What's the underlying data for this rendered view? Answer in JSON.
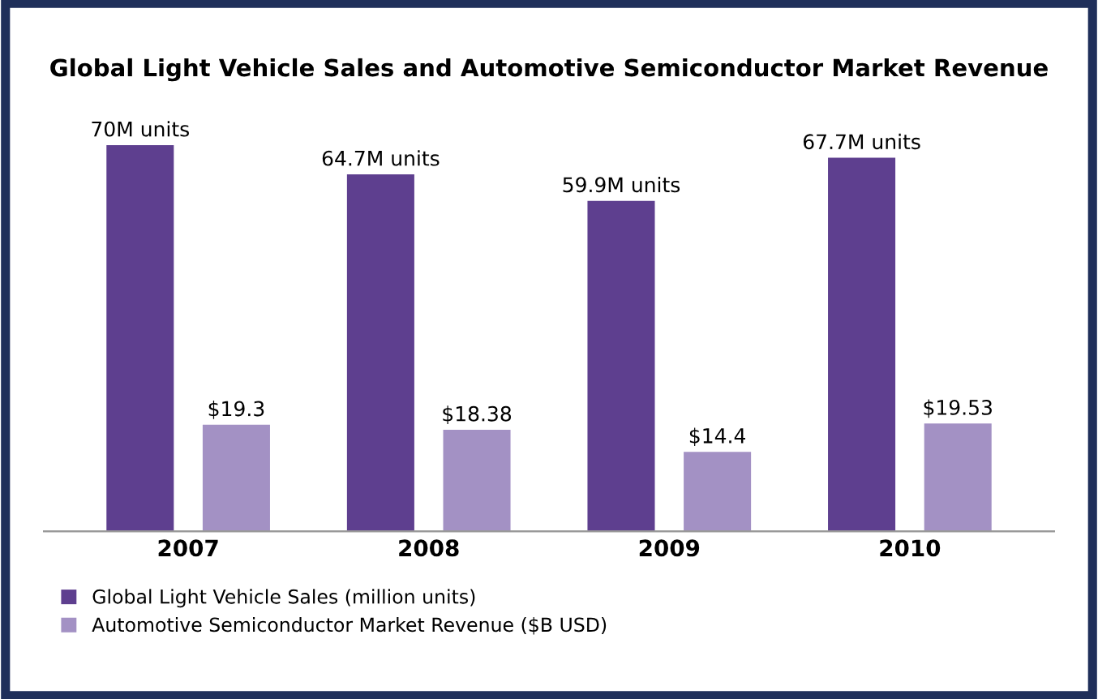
{
  "chart_data": {
    "type": "bar",
    "title": "Global Light Vehicle Sales and Automotive Semiconductor Market Revenue",
    "categories": [
      "2007",
      "2008",
      "2009",
      "2010"
    ],
    "series": [
      {
        "name": "Global Light Vehicle Sales (million units)",
        "color": "#5e3f8f",
        "values": [
          70,
          64.7,
          59.9,
          67.7
        ],
        "value_labels": [
          "70M units",
          "64.7M units",
          "59.9M units",
          "67.7M units"
        ]
      },
      {
        "name": "Automotive Semiconductor Market Revenue ($B USD)",
        "color": "#a391c4",
        "values": [
          19.3,
          18.38,
          14.4,
          19.53
        ],
        "value_labels": [
          "$19.3",
          "$18.38",
          "$14.4",
          "$19.53"
        ]
      }
    ],
    "tick_labels": "x",
    "grid": false,
    "legend": "bottom"
  }
}
